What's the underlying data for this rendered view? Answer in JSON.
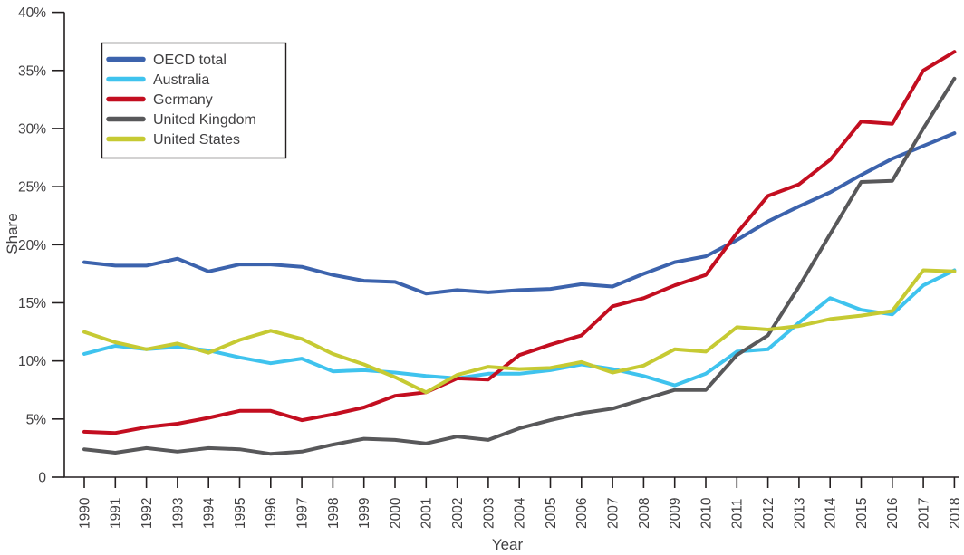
{
  "chart_data": {
    "type": "line",
    "title": "",
    "xlabel": "Year",
    "ylabel": "Share",
    "ylim": [
      0,
      40
    ],
    "grid": false,
    "legend_position": "top-left",
    "axis_color": "#231F20",
    "text_color": "#414042",
    "categories": [
      "1990",
      "1991",
      "1992",
      "1993",
      "1994",
      "1995",
      "1996",
      "1997",
      "1998",
      "1999",
      "2000",
      "2001",
      "2002",
      "2003",
      "2004",
      "2005",
      "2006",
      "2007",
      "2008",
      "2009",
      "2010",
      "2011",
      "2012",
      "2013",
      "2014",
      "2015",
      "2016",
      "2017",
      "2018"
    ],
    "yticks": [
      {
        "v": 0,
        "label": "0"
      },
      {
        "v": 5,
        "label": "5%"
      },
      {
        "v": 10,
        "label": "10%"
      },
      {
        "v": 15,
        "label": "15%"
      },
      {
        "v": 20,
        "label": "20%"
      },
      {
        "v": 25,
        "label": "25%"
      },
      {
        "v": 30,
        "label": "30%"
      },
      {
        "v": 35,
        "label": "35%"
      },
      {
        "v": 40,
        "label": "40%"
      }
    ],
    "series": [
      {
        "name": "OECD total",
        "color": "#3C63AD",
        "values": [
          18.5,
          18.2,
          18.2,
          18.8,
          17.7,
          18.3,
          18.3,
          18.1,
          17.4,
          16.9,
          16.8,
          15.8,
          16.1,
          15.9,
          16.1,
          16.2,
          16.6,
          16.4,
          17.5,
          18.5,
          19.0,
          20.4,
          22.0,
          23.3,
          24.5,
          26.0,
          27.4,
          28.5,
          29.6
        ]
      },
      {
        "name": "Australia",
        "color": "#3FC3EE",
        "values": [
          10.6,
          11.3,
          11.0,
          11.2,
          10.9,
          10.3,
          9.8,
          10.2,
          9.1,
          9.2,
          9.0,
          8.7,
          8.5,
          8.9,
          8.9,
          9.2,
          9.7,
          9.3,
          8.7,
          7.9,
          8.9,
          10.8,
          11.0,
          13.3,
          15.4,
          14.4,
          14.0,
          16.5,
          17.8
        ]
      },
      {
        "name": "Germany",
        "color": "#C30E20",
        "values": [
          3.9,
          3.8,
          4.3,
          4.6,
          5.1,
          5.7,
          5.7,
          4.9,
          5.4,
          6.0,
          7.0,
          7.3,
          8.5,
          8.4,
          10.5,
          11.4,
          12.2,
          14.7,
          15.4,
          16.5,
          17.4,
          21.0,
          24.2,
          25.2,
          27.3,
          30.6,
          30.4,
          35.0,
          36.6
        ]
      },
      {
        "name": "United Kingdom",
        "color": "#58585A",
        "values": [
          2.4,
          2.1,
          2.5,
          2.2,
          2.5,
          2.4,
          2.0,
          2.2,
          2.8,
          3.3,
          3.2,
          2.9,
          3.5,
          3.2,
          4.2,
          4.9,
          5.5,
          5.9,
          6.7,
          7.5,
          7.5,
          10.5,
          12.2,
          16.4,
          20.9,
          25.4,
          25.5,
          30.0,
          34.3
        ]
      },
      {
        "name": "United States",
        "color": "#C6CA33",
        "values": [
          12.5,
          11.6,
          11.0,
          11.5,
          10.7,
          11.8,
          12.6,
          11.9,
          10.6,
          9.7,
          8.6,
          7.3,
          8.8,
          9.5,
          9.3,
          9.4,
          9.9,
          9.0,
          9.6,
          11.0,
          10.8,
          12.9,
          12.7,
          13.0,
          13.6,
          13.9,
          14.3,
          17.8,
          17.7
        ]
      }
    ]
  }
}
